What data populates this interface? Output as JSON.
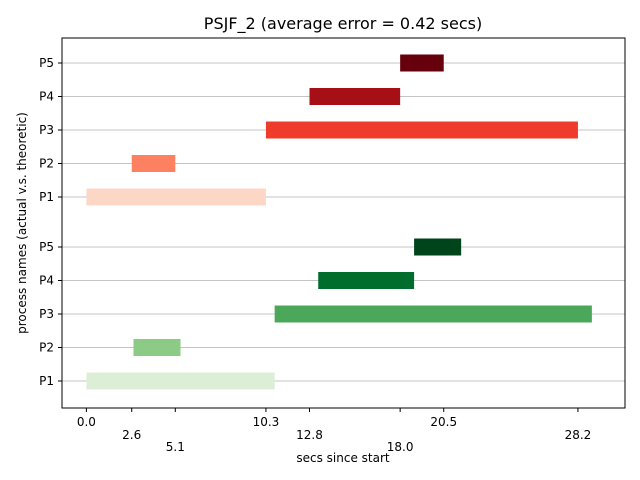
{
  "chart_data": {
    "type": "gantt",
    "title": "PSJF_2 (average error = 0.42 secs)",
    "xlabel": "secs since start",
    "ylabel": "process names (actual v.s. theoretic)",
    "xlim": [
      -1.4,
      30.9
    ],
    "grid": "horizontal",
    "x_ticks": [
      {
        "label": "0.0",
        "value": 0.0,
        "row": 0
      },
      {
        "label": "2.6",
        "value": 2.6,
        "row": 1
      },
      {
        "label": "5.1",
        "value": 5.1,
        "row": 2
      },
      {
        "label": "10.3",
        "value": 10.3,
        "row": 0
      },
      {
        "label": "12.8",
        "value": 12.8,
        "row": 1
      },
      {
        "label": "18.0",
        "value": 18.0,
        "row": 2
      },
      {
        "label": "20.5",
        "value": 20.5,
        "row": 0
      },
      {
        "label": "28.2",
        "value": 28.2,
        "row": 1
      }
    ],
    "groups": [
      {
        "palette": "reds",
        "rows": [
          {
            "name": "P5",
            "start": 18.0,
            "end": 20.5,
            "color": "#67000d"
          },
          {
            "name": "P4",
            "start": 12.8,
            "end": 18.0,
            "color": "#a50f15"
          },
          {
            "name": "P3",
            "start": 10.3,
            "end": 28.2,
            "color": "#ef3b2c"
          },
          {
            "name": "P2",
            "start": 2.6,
            "end": 5.1,
            "color": "#fc8161"
          },
          {
            "name": "P1",
            "start": 0.0,
            "end": 10.3,
            "color": "#fdd7c6"
          }
        ]
      },
      {
        "palette": "greens",
        "rows": [
          {
            "name": "P5",
            "start": 18.8,
            "end": 21.5,
            "color": "#00441b"
          },
          {
            "name": "P4",
            "start": 13.3,
            "end": 18.8,
            "color": "#006d2c"
          },
          {
            "name": "P3",
            "start": 10.8,
            "end": 29.0,
            "color": "#4ba85a"
          },
          {
            "name": "P2",
            "start": 2.7,
            "end": 5.4,
            "color": "#8bcb85"
          },
          {
            "name": "P1",
            "start": 0.0,
            "end": 10.8,
            "color": "#dcefd6"
          }
        ]
      }
    ]
  }
}
